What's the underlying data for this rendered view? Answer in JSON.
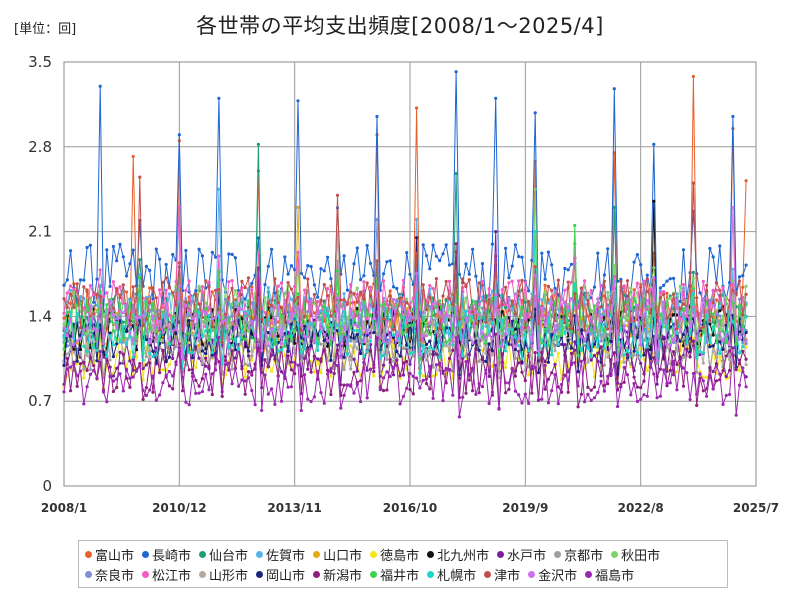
{
  "chart_data": {
    "type": "line",
    "title": "各世帯の平均支出頻度[2008/1～2025/4]",
    "unit_label": "[単位：回]",
    "ylim": [
      0,
      3.5
    ],
    "y_ticks": [
      "0",
      "0.7",
      "1.4",
      "2.1",
      "2.8",
      "3.5"
    ],
    "x_range": [
      "2008/1",
      "2025/7"
    ],
    "x_ticks": [
      "2008/1",
      "2010/12",
      "2013/11",
      "2016/10",
      "2019/9",
      "2022/8",
      "2025/7"
    ],
    "grid": true,
    "legend_position": "bottom",
    "series": [
      {
        "name": "富山市",
        "color": "#E8612C",
        "baseline": 1.45,
        "amplitude": 0.22,
        "peaks": [
          [
            2009.75,
            2.72
          ],
          [
            2010.92,
            2.85
          ],
          [
            2012.92,
            2.6
          ],
          [
            2015.92,
            2.9
          ],
          [
            2016.92,
            3.12
          ],
          [
            2019.92,
            2.68
          ],
          [
            2021.92,
            2.75
          ],
          [
            2023.92,
            3.38
          ],
          [
            2024.92,
            2.95
          ],
          [
            2025.25,
            2.52
          ]
        ]
      },
      {
        "name": "長崎市",
        "color": "#1F66D1",
        "baseline": 1.75,
        "amplitude": 0.25,
        "peaks": [
          [
            2008.92,
            3.3
          ],
          [
            2010.92,
            2.9
          ],
          [
            2011.92,
            3.2
          ],
          [
            2013.92,
            3.18
          ],
          [
            2015.92,
            3.05
          ],
          [
            2017.92,
            3.42
          ],
          [
            2018.92,
            3.2
          ],
          [
            2019.92,
            3.08
          ],
          [
            2021.92,
            3.28
          ],
          [
            2022.92,
            2.82
          ],
          [
            2024.92,
            3.05
          ]
        ]
      },
      {
        "name": "仙台市",
        "color": "#1B9E77",
        "baseline": 1.4,
        "amplitude": 0.22,
        "peaks": [
          [
            2012.92,
            2.82
          ],
          [
            2017.92,
            2.58
          ],
          [
            2021.92,
            2.3
          ]
        ]
      },
      {
        "name": "佐賀市",
        "color": "#56B4E9",
        "baseline": 1.45,
        "amplitude": 0.2,
        "peaks": [
          [
            2011.92,
            2.45
          ],
          [
            2016.92,
            2.2
          ]
        ]
      },
      {
        "name": "山口市",
        "color": "#E6A817",
        "baseline": 1.3,
        "amplitude": 0.18,
        "peaks": [
          [
            2013.92,
            2.3
          ]
        ]
      },
      {
        "name": "徳島市",
        "color": "#F2E51B",
        "baseline": 1.05,
        "amplitude": 0.17,
        "peaks": [
          [
            2019.92,
            1.9
          ]
        ]
      },
      {
        "name": "北九州市",
        "color": "#111111",
        "baseline": 1.3,
        "amplitude": 0.18,
        "peaks": [
          [
            2022.92,
            2.35
          ]
        ]
      },
      {
        "name": "水戸市",
        "color": "#7B1FA2",
        "baseline": 1.1,
        "amplitude": 0.2,
        "peaks": [
          [
            2018.92,
            2.1
          ]
        ]
      },
      {
        "name": "京都市",
        "color": "#9E9E9E",
        "baseline": 1.15,
        "amplitude": 0.2,
        "peaks": [
          [
            2020.92,
            2.0
          ]
        ]
      },
      {
        "name": "秋田市",
        "color": "#7FD36B",
        "baseline": 1.45,
        "amplitude": 0.2,
        "peaks": [
          [
            2019.92,
            2.45
          ]
        ]
      },
      {
        "name": "奈良市",
        "color": "#7E8FD6",
        "baseline": 1.35,
        "amplitude": 0.2,
        "peaks": [
          [
            2015.92,
            2.2
          ]
        ]
      },
      {
        "name": "松江市",
        "color": "#F25BC1",
        "baseline": 1.5,
        "amplitude": 0.2,
        "peaks": [
          [
            2010.92,
            2.3
          ]
        ]
      },
      {
        "name": "山形市",
        "color": "#B5A8A0",
        "baseline": 1.2,
        "amplitude": 0.2,
        "peaks": [
          [
            2014.92,
            2.1
          ]
        ]
      },
      {
        "name": "岡山市",
        "color": "#1A237E",
        "baseline": 1.2,
        "amplitude": 0.18,
        "peaks": [
          [
            2016.92,
            2.05
          ]
        ]
      },
      {
        "name": "新潟市",
        "color": "#8E1F7E",
        "baseline": 0.95,
        "amplitude": 0.2,
        "peaks": [
          [
            2017.92,
            2.0
          ]
        ]
      },
      {
        "name": "福井市",
        "color": "#3FD14F",
        "baseline": 1.35,
        "amplitude": 0.2,
        "peaks": [
          [
            2020.92,
            2.15
          ]
        ]
      },
      {
        "name": "札幌市",
        "color": "#1ED6C8",
        "baseline": 1.25,
        "amplitude": 0.2,
        "peaks": [
          [
            2019.92,
            2.1
          ]
        ]
      },
      {
        "name": "津市",
        "color": "#C0504D",
        "baseline": 1.5,
        "amplitude": 0.22,
        "peaks": [
          [
            2009.92,
            2.55
          ],
          [
            2014.92,
            2.4
          ],
          [
            2023.92,
            2.5
          ]
        ]
      },
      {
        "name": "金沢市",
        "color": "#D070F0",
        "baseline": 1.35,
        "amplitude": 0.2,
        "peaks": [
          [
            2024.92,
            2.3
          ]
        ]
      },
      {
        "name": "福島市",
        "color": "#9C27B0",
        "baseline": 0.85,
        "amplitude": 0.18,
        "peaks": [
          [
            2012.92,
            1.8
          ]
        ]
      }
    ]
  }
}
